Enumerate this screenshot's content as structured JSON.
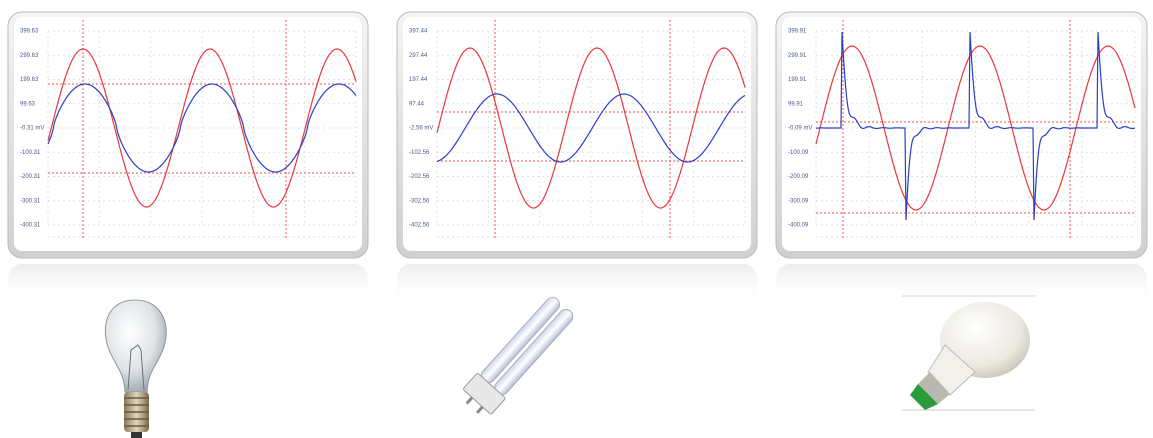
{
  "panels": [
    {
      "y_labels": [
        "399.63",
        "299.63",
        "199.63",
        "99.63",
        "-0.31 mV",
        "-100.31",
        "-200.31",
        "-300.31",
        "-400.31"
      ]
    },
    {
      "y_labels": [
        "397.44",
        "297.44",
        "197.44",
        "97.44",
        "-2.56 mV",
        "-102.56",
        "-202.56",
        "-302.56",
        "-402.56"
      ]
    },
    {
      "y_labels": [
        "399.91",
        "299.91",
        "199.91",
        "99.91",
        "-0.09 mV",
        "-100.09",
        "-200.09",
        "-300.09",
        "-400.09"
      ]
    }
  ]
}
